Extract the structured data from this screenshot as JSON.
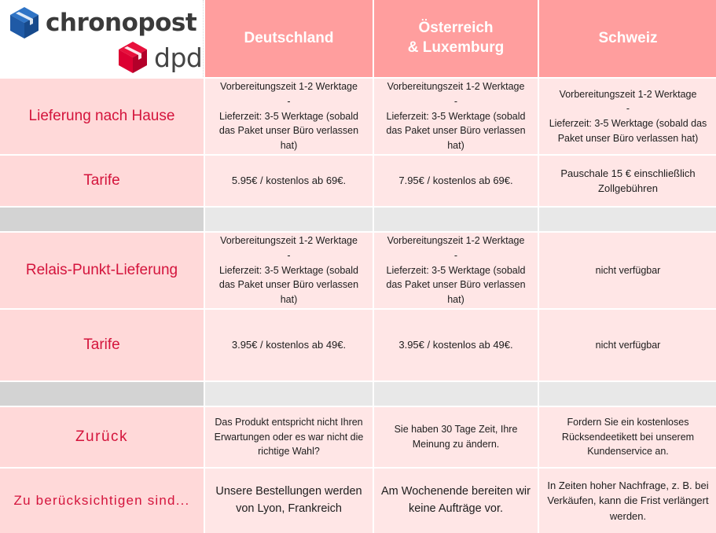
{
  "logos": {
    "chronopost": "chronopost",
    "dpd": "dpd",
    "colors": {
      "chronopost_blue": "#1f5aa6",
      "dpd_red": "#dc0032"
    }
  },
  "columns": [
    "Deutschland",
    "Österreich\n& Luxemburg",
    "Schweiz"
  ],
  "rows": [
    {
      "label": "Lieferung nach Hause",
      "cells": [
        "Vorbereitungszeit 1-2 Werktage\n-\nLieferzeit: 3-5 Werktage (sobald das Paket unser Büro verlassen hat)",
        "Vorbereitungszeit 1-2 Werktage\n-\nLieferzeit: 3-5 Werktage (sobald das Paket unser Büro verlassen hat)",
        "Vorbereitungszeit 1-2 Werktage\n-\nLieferzeit: 3-5 Werktage (sobald das Paket unser Büro verlassen hat)"
      ]
    },
    {
      "label": "Tarife",
      "cells": [
        "5.95€ / kostenlos ab 69€.",
        "7.95€ / kostenlos ab 69€.",
        "Pauschale 15 € einschließlich Zollgebühren"
      ]
    },
    {
      "label": "Relais-Punkt-Lieferung",
      "cells": [
        "Vorbereitungszeit 1-2 Werktage\n-\nLieferzeit: 3-5 Werktage (sobald das Paket unser Büro verlassen hat)",
        "Vorbereitungszeit 1-2 Werktage\n-\nLieferzeit: 3-5 Werktage (sobald das Paket unser Büro verlassen hat)",
        "nicht verfügbar"
      ]
    },
    {
      "label": "Tarife",
      "cells": [
        "3.95€ / kostenlos ab 49€.",
        "3.95€ / kostenlos ab 49€.",
        "nicht verfügbar"
      ]
    },
    {
      "label": "Zurück",
      "cells": [
        "Das Produkt entspricht nicht Ihren Erwartungen oder es war nicht die richtige Wahl?",
        "Sie haben 30 Tage Zeit, Ihre Meinung zu ändern.",
        "Fordern Sie ein kostenloses Rücksendeetikett bei unserem Kundenservice an."
      ]
    },
    {
      "label": "Zu berücksichtigen sind...",
      "cells": [
        "Unsere Bestellungen werden von Lyon, Frankreich",
        "Am Wochenende bereiten wir keine Aufträge vor.",
        "In Zeiten hoher Nachfrage, z. B. bei Verkäufen, kann die Frist verlängert werden."
      ]
    }
  ]
}
